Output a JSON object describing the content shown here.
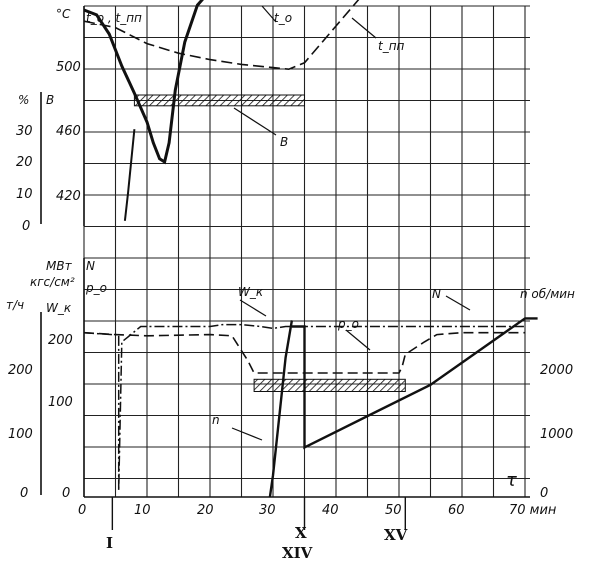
{
  "chart_data": [
    {
      "type": "line",
      "panel": "upper",
      "xlabel": "τ, мин",
      "xlim": [
        0,
        70
      ],
      "left_axis_labels": [
        "°C",
        "t_o , t_пп",
        "%",
        "B"
      ],
      "temp_ticks": [
        "500",
        "460",
        "420"
      ],
      "percent_ticks": [
        "30",
        "20",
        "10",
        "0"
      ],
      "series": [
        {
          "name": "t_o",
          "units": "°C",
          "line": "solid-thick",
          "x": [
            0,
            2,
            4,
            6,
            8,
            10,
            11,
            12,
            12.8,
            13.5,
            14.5,
            16,
            18,
            20,
            21,
            35
          ],
          "y": [
            535,
            532,
            520,
            500,
            483,
            465,
            452,
            442,
            440,
            452,
            485,
            515,
            538,
            547,
            548,
            548
          ]
        },
        {
          "name": "t_пп",
          "units": "°C",
          "line": "dashed",
          "x": [
            0,
            5,
            10,
            15,
            20,
            25,
            30,
            32.5,
            35,
            40,
            45
          ],
          "y": [
            528,
            524,
            514,
            508,
            504,
            501,
            499,
            498,
            502,
            525,
            548
          ]
        },
        {
          "name": "B",
          "units": "%",
          "line": "solid",
          "x": [
            6.5,
            7,
            8
          ],
          "y": [
            1,
            10,
            30
          ]
        }
      ],
      "hatched_band": {
        "label": "B",
        "x": [
          8,
          35
        ],
        "y": [
          477,
          480
        ]
      },
      "annotations": [
        "t_o",
        "t_пп",
        "B"
      ]
    },
    {
      "type": "line",
      "panel": "lower",
      "xlabel": "τ",
      "x_ticks": [
        "0",
        "10",
        "20",
        "30",
        "40",
        "50",
        "60",
        "70 мин"
      ],
      "xlim": [
        0,
        70
      ],
      "left_axis_labels": [
        "МВт",
        "N",
        "кгс/см²",
        "p_o",
        "т/ч",
        "W_к"
      ],
      "left_ticks": [
        "200",
        "100",
        "0"
      ],
      "right_axis_label": "n об/мин",
      "right_ticks": [
        "2000",
        "1000",
        "0"
      ],
      "series": [
        {
          "name": "W_к",
          "units": "т/ч",
          "line": "dash-dot",
          "x": [
            0,
            4.5,
            5.5,
            5.5,
            6,
            9,
            20,
            22,
            25,
            28,
            30,
            32,
            35,
            40,
            50,
            60,
            70
          ],
          "y": [
            265,
            262,
            262,
            10,
            250,
            275,
            275,
            278,
            278,
            275,
            272,
            275,
            275,
            275,
            275,
            275,
            275
          ]
        },
        {
          "name": "p_o",
          "units": "кгс/см²",
          "line": "dashed",
          "x": [
            0,
            5,
            10,
            20,
            23.5,
            26,
            27,
            34,
            50,
            50.5,
            51,
            54,
            56,
            60,
            70
          ],
          "y": [
            265,
            262,
            260,
            262,
            260,
            220,
            200,
            200,
            200,
            210,
            230,
            250,
            262,
            265,
            265
          ]
        },
        {
          "name": "n",
          "units": "об/мин",
          "line": "solid",
          "x": [
            29.5,
            30,
            31,
            32,
            33
          ],
          "y": [
            0,
            350,
            1300,
            2250,
            2850
          ]
        },
        {
          "name": "N",
          "units": "МВт",
          "line": "solid",
          "x": [
            33,
            35,
            35,
            55,
            70,
            72
          ],
          "y": [
            275,
            275,
            80,
            181,
            288,
            288
          ]
        }
      ],
      "hatched_band": {
        "label": "p_o",
        "x": [
          27,
          51
        ],
        "y": [
          175,
          185
        ]
      },
      "annotations": [
        "W_к",
        "p_o",
        "N",
        "n"
      ]
    }
  ],
  "event_markers": [
    {
      "label": "I",
      "x": 4.5
    },
    {
      "label": "X",
      "x": 35
    },
    {
      "label": "XIV",
      "x": 35
    },
    {
      "label": "XV",
      "x": 51
    }
  ],
  "colors": {
    "ink": "#111111",
    "background": "#ffffff"
  }
}
